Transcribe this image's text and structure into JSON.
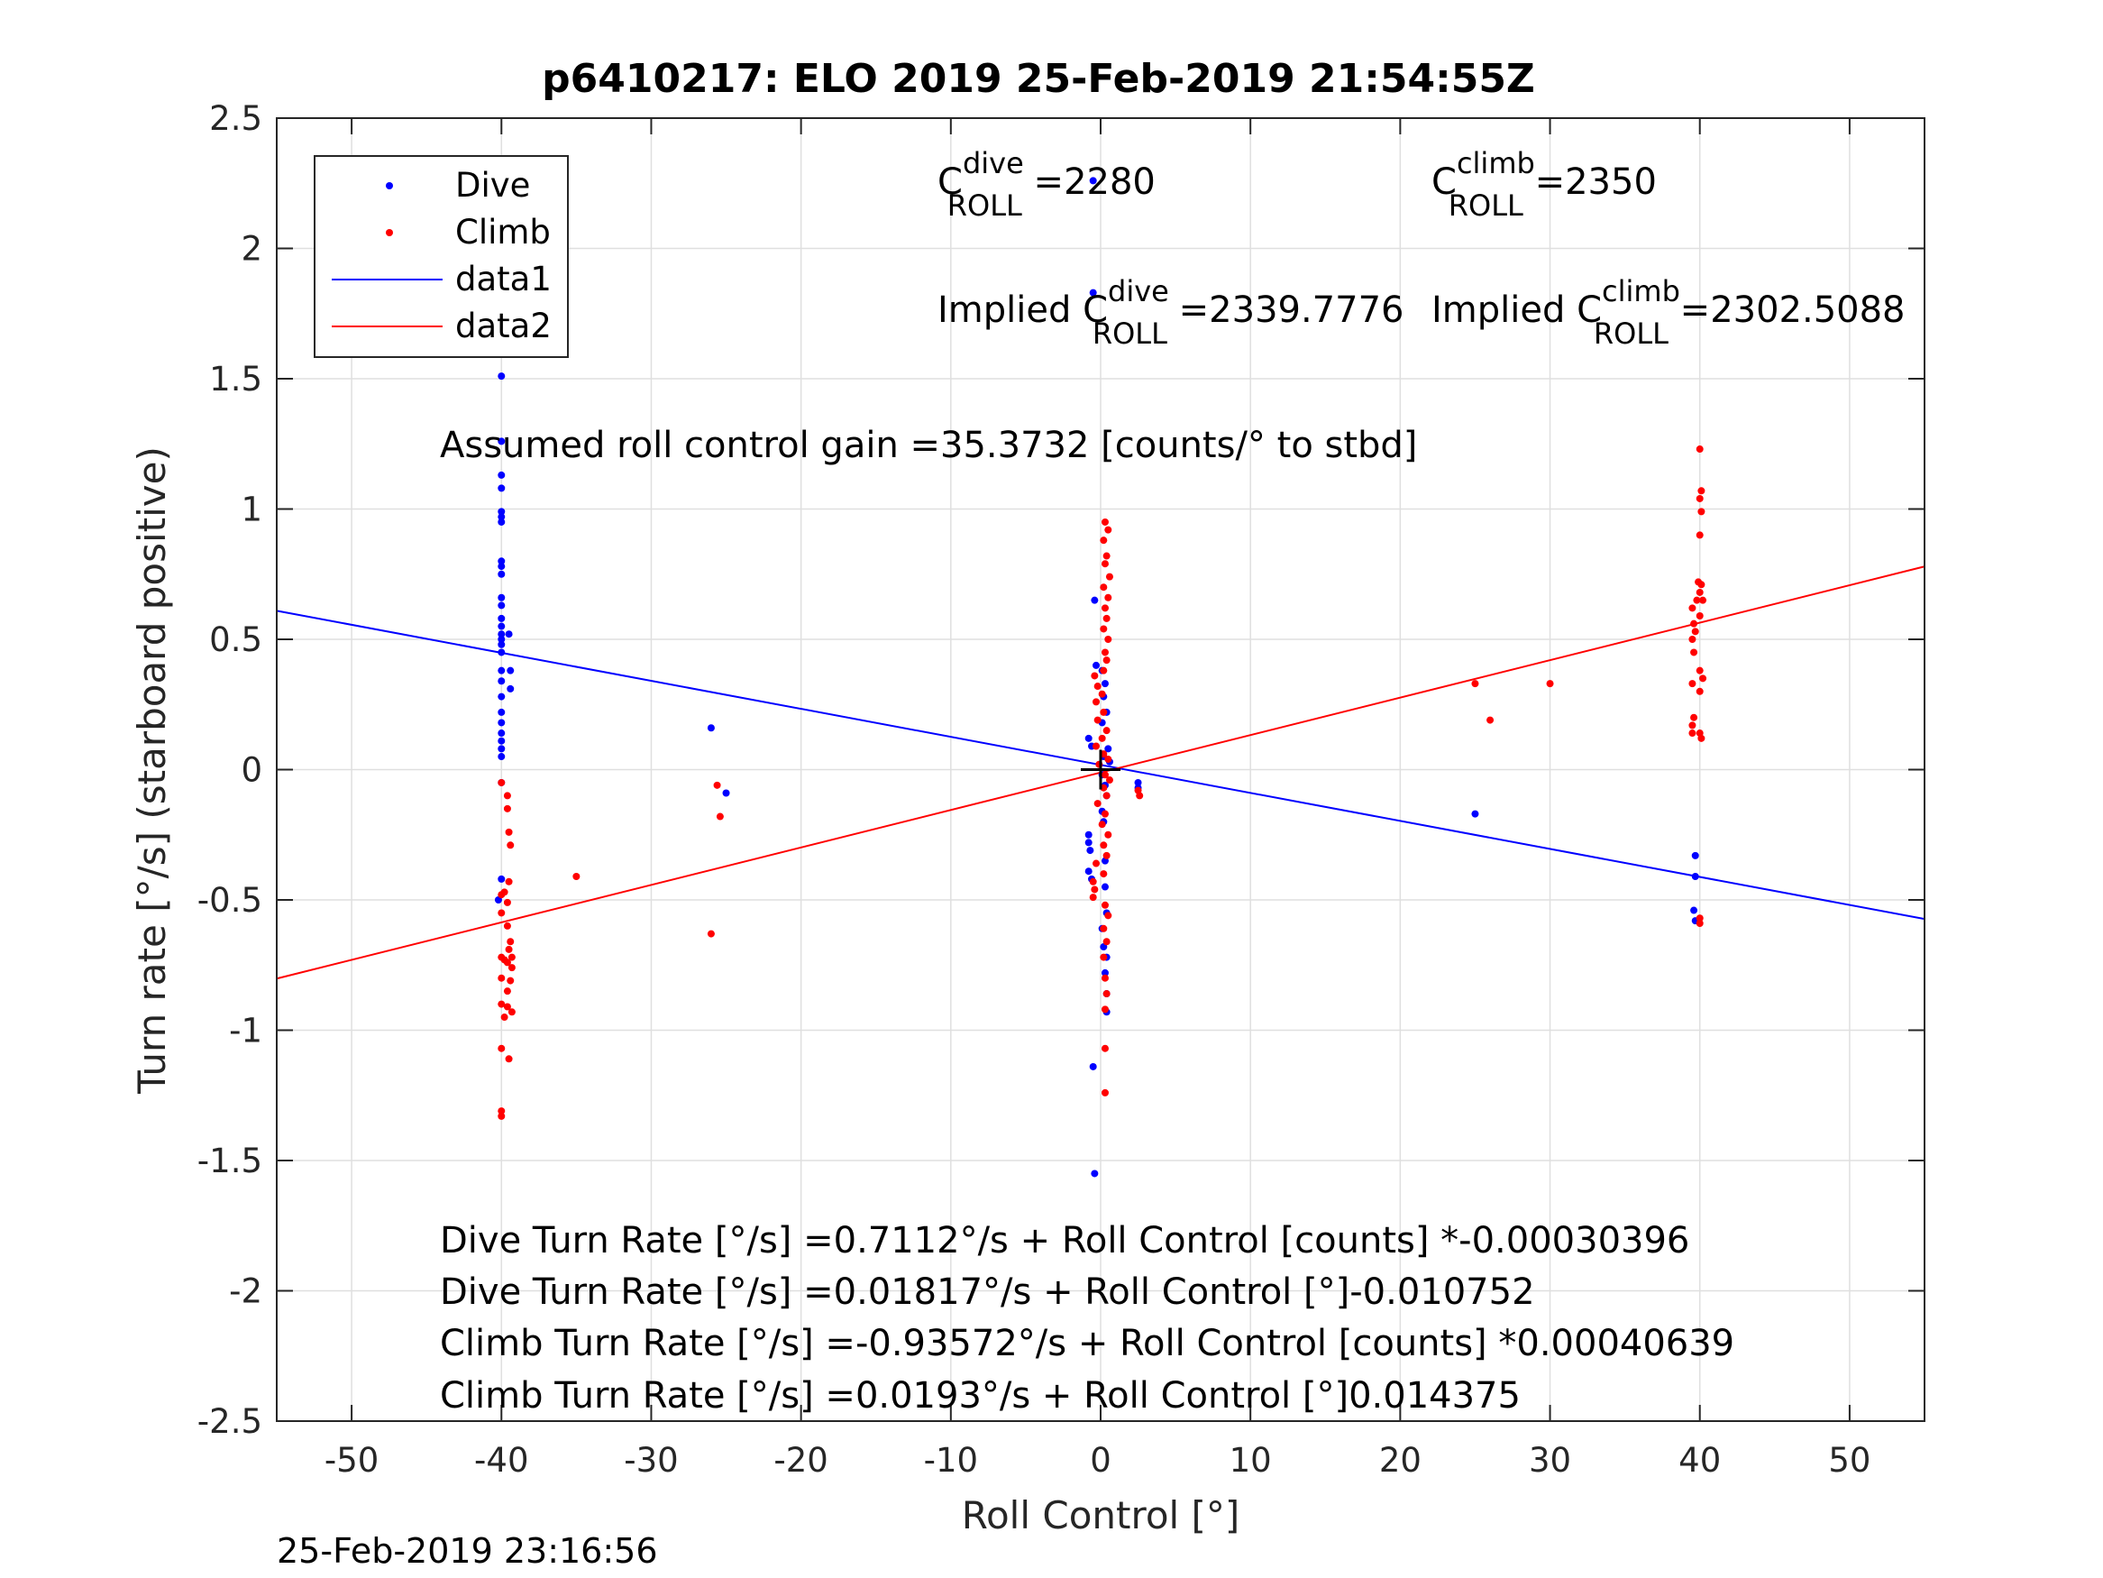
{
  "chart_data": {
    "type": "scatter",
    "title": "p6410217: ELO 2019 25-Feb-2019 21:54:55Z",
    "xlabel": "Roll Control [°]",
    "ylabel": "Turn rate [°/s] (starboard positive)",
    "xlim": [
      -55,
      55
    ],
    "ylim": [
      -2.5,
      2.5
    ],
    "xticks": [
      "-50",
      "-40",
      "-30",
      "-20",
      "-10",
      "0",
      "10",
      "20",
      "30",
      "40",
      "50"
    ],
    "yticks": [
      "-2.5",
      "-2",
      "-1.5",
      "-1",
      "-0.5",
      "0",
      "0.5",
      "1",
      "1.5",
      "2",
      "2.5"
    ],
    "grid": true,
    "legend": {
      "placement": "top-left",
      "entries": [
        {
          "label": "Dive",
          "color": "#0000ff",
          "marker": "point"
        },
        {
          "label": "Climb",
          "color": "#ff0000",
          "marker": "point"
        },
        {
          "label": "data1",
          "color": "#0000ff",
          "marker": "line"
        },
        {
          "label": "data2",
          "color": "#ff0000",
          "marker": "line"
        }
      ]
    },
    "series": [
      {
        "name": "Dive",
        "color": "#0000ff",
        "points": [
          [
            -40,
            1.51
          ],
          [
            -40,
            1.26
          ],
          [
            -40,
            1.13
          ],
          [
            -40,
            1.08
          ],
          [
            -40,
            0.99
          ],
          [
            -40,
            0.97
          ],
          [
            -40,
            0.95
          ],
          [
            -40,
            0.8
          ],
          [
            -40,
            0.78
          ],
          [
            -40,
            0.75
          ],
          [
            -40,
            0.66
          ],
          [
            -40,
            0.63
          ],
          [
            -40,
            0.58
          ],
          [
            -40,
            0.55
          ],
          [
            -40,
            0.52
          ],
          [
            -40,
            0.5
          ],
          [
            -40,
            0.48
          ],
          [
            -40,
            0.45
          ],
          [
            -40,
            0.38
          ],
          [
            -40,
            0.34
          ],
          [
            -40,
            0.28
          ],
          [
            -40,
            0.22
          ],
          [
            -40,
            0.18
          ],
          [
            -40,
            0.14
          ],
          [
            -40,
            0.11
          ],
          [
            -40,
            0.08
          ],
          [
            -40,
            0.05
          ],
          [
            -40,
            -0.05
          ],
          [
            -39.5,
            0.52
          ],
          [
            -39.4,
            0.38
          ],
          [
            -39.4,
            0.31
          ],
          [
            -40,
            -0.42
          ],
          [
            -40.2,
            -0.5
          ],
          [
            -26,
            0.16
          ],
          [
            -25,
            -0.09
          ],
          [
            -0.5,
            2.26
          ],
          [
            -0.5,
            1.83
          ],
          [
            -0.4,
            0.65
          ],
          [
            -0.3,
            0.4
          ],
          [
            0.1,
            0.38
          ],
          [
            0.3,
            0.33
          ],
          [
            0.2,
            0.28
          ],
          [
            0.4,
            0.22
          ],
          [
            0.1,
            0.18
          ],
          [
            -0.8,
            0.12
          ],
          [
            -0.6,
            0.09
          ],
          [
            0.5,
            0.08
          ],
          [
            0.2,
            0.05
          ],
          [
            0.6,
            0.03
          ],
          [
            0.1,
            -0.02
          ],
          [
            0.3,
            -0.06
          ],
          [
            0.4,
            -0.1
          ],
          [
            0.1,
            -0.16
          ],
          [
            0.2,
            -0.2
          ],
          [
            -0.8,
            -0.25
          ],
          [
            -0.8,
            -0.28
          ],
          [
            -0.7,
            -0.31
          ],
          [
            -0.8,
            -0.39
          ],
          [
            -0.6,
            -0.42
          ],
          [
            0.3,
            -0.35
          ],
          [
            0.3,
            -0.45
          ],
          [
            0.4,
            -0.55
          ],
          [
            0.1,
            -0.61
          ],
          [
            0.2,
            -0.68
          ],
          [
            0.4,
            -0.72
          ],
          [
            0.3,
            -0.78
          ],
          [
            0.4,
            -0.86
          ],
          [
            0.4,
            -0.93
          ],
          [
            -0.5,
            -1.14
          ],
          [
            -0.4,
            -1.55
          ],
          [
            2.5,
            -0.05
          ],
          [
            2.5,
            -0.07
          ],
          [
            25,
            -0.17
          ],
          [
            39.7,
            -0.33
          ],
          [
            39.7,
            -0.41
          ],
          [
            39.6,
            -0.54
          ],
          [
            39.7,
            -0.58
          ]
        ]
      },
      {
        "name": "Climb",
        "color": "#ff0000",
        "points": [
          [
            -40,
            -0.05
          ],
          [
            -39.6,
            -0.1
          ],
          [
            -39.6,
            -0.15
          ],
          [
            -39.5,
            -0.24
          ],
          [
            -39.4,
            -0.29
          ],
          [
            -39.5,
            -0.43
          ],
          [
            -39.8,
            -0.47
          ],
          [
            -40,
            -0.48
          ],
          [
            -39.6,
            -0.51
          ],
          [
            -40,
            -0.55
          ],
          [
            -39.6,
            -0.6
          ],
          [
            -39.4,
            -0.66
          ],
          [
            -39.5,
            -0.69
          ],
          [
            -39.3,
            -0.72
          ],
          [
            -40,
            -0.72
          ],
          [
            -39.8,
            -0.73
          ],
          [
            -39.6,
            -0.74
          ],
          [
            -39.3,
            -0.76
          ],
          [
            -40,
            -0.8
          ],
          [
            -39.4,
            -0.81
          ],
          [
            -39.6,
            -0.85
          ],
          [
            -40,
            -0.9
          ],
          [
            -39.6,
            -0.91
          ],
          [
            -39.3,
            -0.93
          ],
          [
            -39.8,
            -0.95
          ],
          [
            -40,
            -1.07
          ],
          [
            -39.5,
            -1.11
          ],
          [
            -40,
            -1.31
          ],
          [
            -40,
            -1.33
          ],
          [
            -35,
            -0.41
          ],
          [
            -25.6,
            -0.06
          ],
          [
            -25.4,
            -0.18
          ],
          [
            -26,
            -0.63
          ],
          [
            0.3,
            0.95
          ],
          [
            0.5,
            0.92
          ],
          [
            0.2,
            0.88
          ],
          [
            0.4,
            0.82
          ],
          [
            0.3,
            0.79
          ],
          [
            0.6,
            0.74
          ],
          [
            0.2,
            0.7
          ],
          [
            0.5,
            0.66
          ],
          [
            0.3,
            0.62
          ],
          [
            0.4,
            0.58
          ],
          [
            0.2,
            0.54
          ],
          [
            0.5,
            0.5
          ],
          [
            0.3,
            0.45
          ],
          [
            0.4,
            0.42
          ],
          [
            0.2,
            0.38
          ],
          [
            -0.4,
            0.36
          ],
          [
            -0.2,
            0.32
          ],
          [
            0.1,
            0.29
          ],
          [
            -0.3,
            0.26
          ],
          [
            0.2,
            0.22
          ],
          [
            -0.2,
            0.19
          ],
          [
            0.4,
            0.15
          ],
          [
            0.1,
            0.12
          ],
          [
            -0.3,
            0.09
          ],
          [
            0.2,
            0.06
          ],
          [
            0.5,
            0.04
          ],
          [
            -0.1,
            0.02
          ],
          [
            0.3,
            -0.02
          ],
          [
            0.6,
            -0.04
          ],
          [
            0.2,
            -0.07
          ],
          [
            0.4,
            -0.1
          ],
          [
            -0.2,
            -0.13
          ],
          [
            0.3,
            -0.17
          ],
          [
            0.1,
            -0.21
          ],
          [
            0.5,
            -0.25
          ],
          [
            0.2,
            -0.29
          ],
          [
            0.4,
            -0.33
          ],
          [
            -0.3,
            -0.36
          ],
          [
            0.2,
            -0.4
          ],
          [
            -0.5,
            -0.43
          ],
          [
            -0.4,
            -0.46
          ],
          [
            -0.5,
            -0.49
          ],
          [
            0.3,
            -0.52
          ],
          [
            0.5,
            -0.56
          ],
          [
            0.2,
            -0.61
          ],
          [
            0.4,
            -0.66
          ],
          [
            0.2,
            -0.72
          ],
          [
            0.3,
            -0.8
          ],
          [
            0.4,
            -0.86
          ],
          [
            0.3,
            -0.92
          ],
          [
            0.3,
            -1.07
          ],
          [
            0.3,
            -1.24
          ],
          [
            2.5,
            -0.08
          ],
          [
            2.6,
            -0.1
          ],
          [
            25,
            0.33
          ],
          [
            26,
            0.19
          ],
          [
            30,
            0.33
          ],
          [
            40,
            1.23
          ],
          [
            40.1,
            1.07
          ],
          [
            40,
            1.04
          ],
          [
            40.1,
            0.99
          ],
          [
            40,
            0.9
          ],
          [
            39.9,
            0.72
          ],
          [
            40.1,
            0.71
          ],
          [
            40,
            0.68
          ],
          [
            39.8,
            0.65
          ],
          [
            40.2,
            0.65
          ],
          [
            39.5,
            0.62
          ],
          [
            40,
            0.59
          ],
          [
            39.6,
            0.56
          ],
          [
            39.7,
            0.53
          ],
          [
            39.5,
            0.5
          ],
          [
            39.6,
            0.45
          ],
          [
            40,
            0.38
          ],
          [
            40.2,
            0.35
          ],
          [
            39.5,
            0.33
          ],
          [
            40,
            0.3
          ],
          [
            39.6,
            0.2
          ],
          [
            39.5,
            0.17
          ],
          [
            39.5,
            0.14
          ],
          [
            40,
            0.14
          ],
          [
            40.1,
            0.12
          ],
          [
            40,
            -0.57
          ],
          [
            40,
            -0.59
          ]
        ]
      },
      {
        "name": "data1",
        "color": "#0000ff",
        "line": [
          [
            -55,
            0.6095
          ],
          [
            55,
            -0.5731
          ]
        ]
      },
      {
        "name": "data2",
        "color": "#ff0000",
        "line": [
          [
            -55,
            -0.8018
          ],
          [
            55,
            0.7795
          ]
        ]
      }
    ],
    "origin_marker": [
      0,
      0
    ],
    "annotations": {
      "c_roll_dive": {
        "base": "C",
        "sup": "dive",
        "sub": "ROLL",
        "value": " =2280"
      },
      "c_roll_climb": {
        "base": "C",
        "sup": "climb",
        "sub": "ROLL",
        "value": " =2350"
      },
      "implied_dive": {
        "base": "Implied C",
        "sup": "dive",
        "sub": "ROLL",
        "value": " =2339.7776"
      },
      "implied_climb": {
        "base": "Implied C",
        "sup": "climb",
        "sub": "ROLL",
        "value": " =2302.5088"
      },
      "gain": "Assumed roll control gain =35.3732 [counts/° to stbd]",
      "equations": [
        "Dive Turn Rate [°/s] =0.7112°/s + Roll Control [counts] *-0.00030396",
        "Dive Turn Rate [°/s] =0.01817°/s + Roll Control [°]-0.010752",
        "Climb Turn Rate [°/s] =-0.93572°/s + Roll Control [counts] *0.00040639",
        "Climb Turn Rate [°/s] =0.0193°/s + Roll Control [°]0.014375"
      ]
    },
    "timestamp": "25-Feb-2019 23:16:56"
  }
}
